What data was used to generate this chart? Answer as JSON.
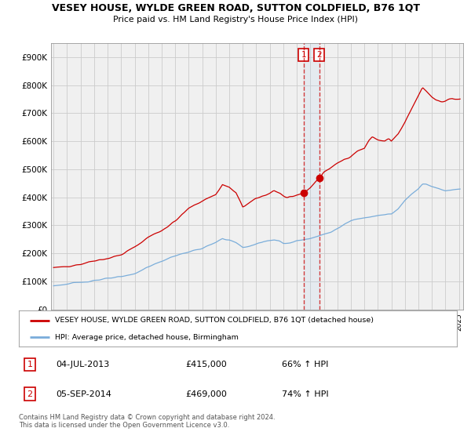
{
  "title": "VESEY HOUSE, WYLDE GREEN ROAD, SUTTON COLDFIELD, B76 1QT",
  "subtitle": "Price paid vs. HM Land Registry's House Price Index (HPI)",
  "legend_line1": "VESEY HOUSE, WYLDE GREEN ROAD, SUTTON COLDFIELD, B76 1QT (detached house)",
  "legend_line2": "HPI: Average price, detached house, Birmingham",
  "annotation1_label": "1",
  "annotation1_date": "04-JUL-2013",
  "annotation1_price": "£415,000",
  "annotation1_hpi": "66% ↑ HPI",
  "annotation2_label": "2",
  "annotation2_date": "05-SEP-2014",
  "annotation2_price": "£469,000",
  "annotation2_hpi": "74% ↑ HPI",
  "footer": "Contains HM Land Registry data © Crown copyright and database right 2024.\nThis data is licensed under the Open Government Licence v3.0.",
  "red_color": "#cc0000",
  "blue_color": "#7aadda",
  "chart_bg": "#f0f0f0",
  "background_color": "#ffffff",
  "grid_color": "#cccccc",
  "ylim": [
    0,
    950000
  ],
  "yticks": [
    0,
    100000,
    200000,
    300000,
    400000,
    500000,
    600000,
    700000,
    800000,
    900000
  ],
  "ytick_labels": [
    "£0",
    "£100K",
    "£200K",
    "£300K",
    "£400K",
    "£500K",
    "£600K",
    "£700K",
    "£800K",
    "£900K"
  ],
  "marker1_date_num": 2013.5,
  "marker1_value": 415000,
  "marker2_date_num": 2014.67,
  "marker2_value": 469000,
  "vline1_date": 2013.5,
  "vline2_date": 2014.67
}
